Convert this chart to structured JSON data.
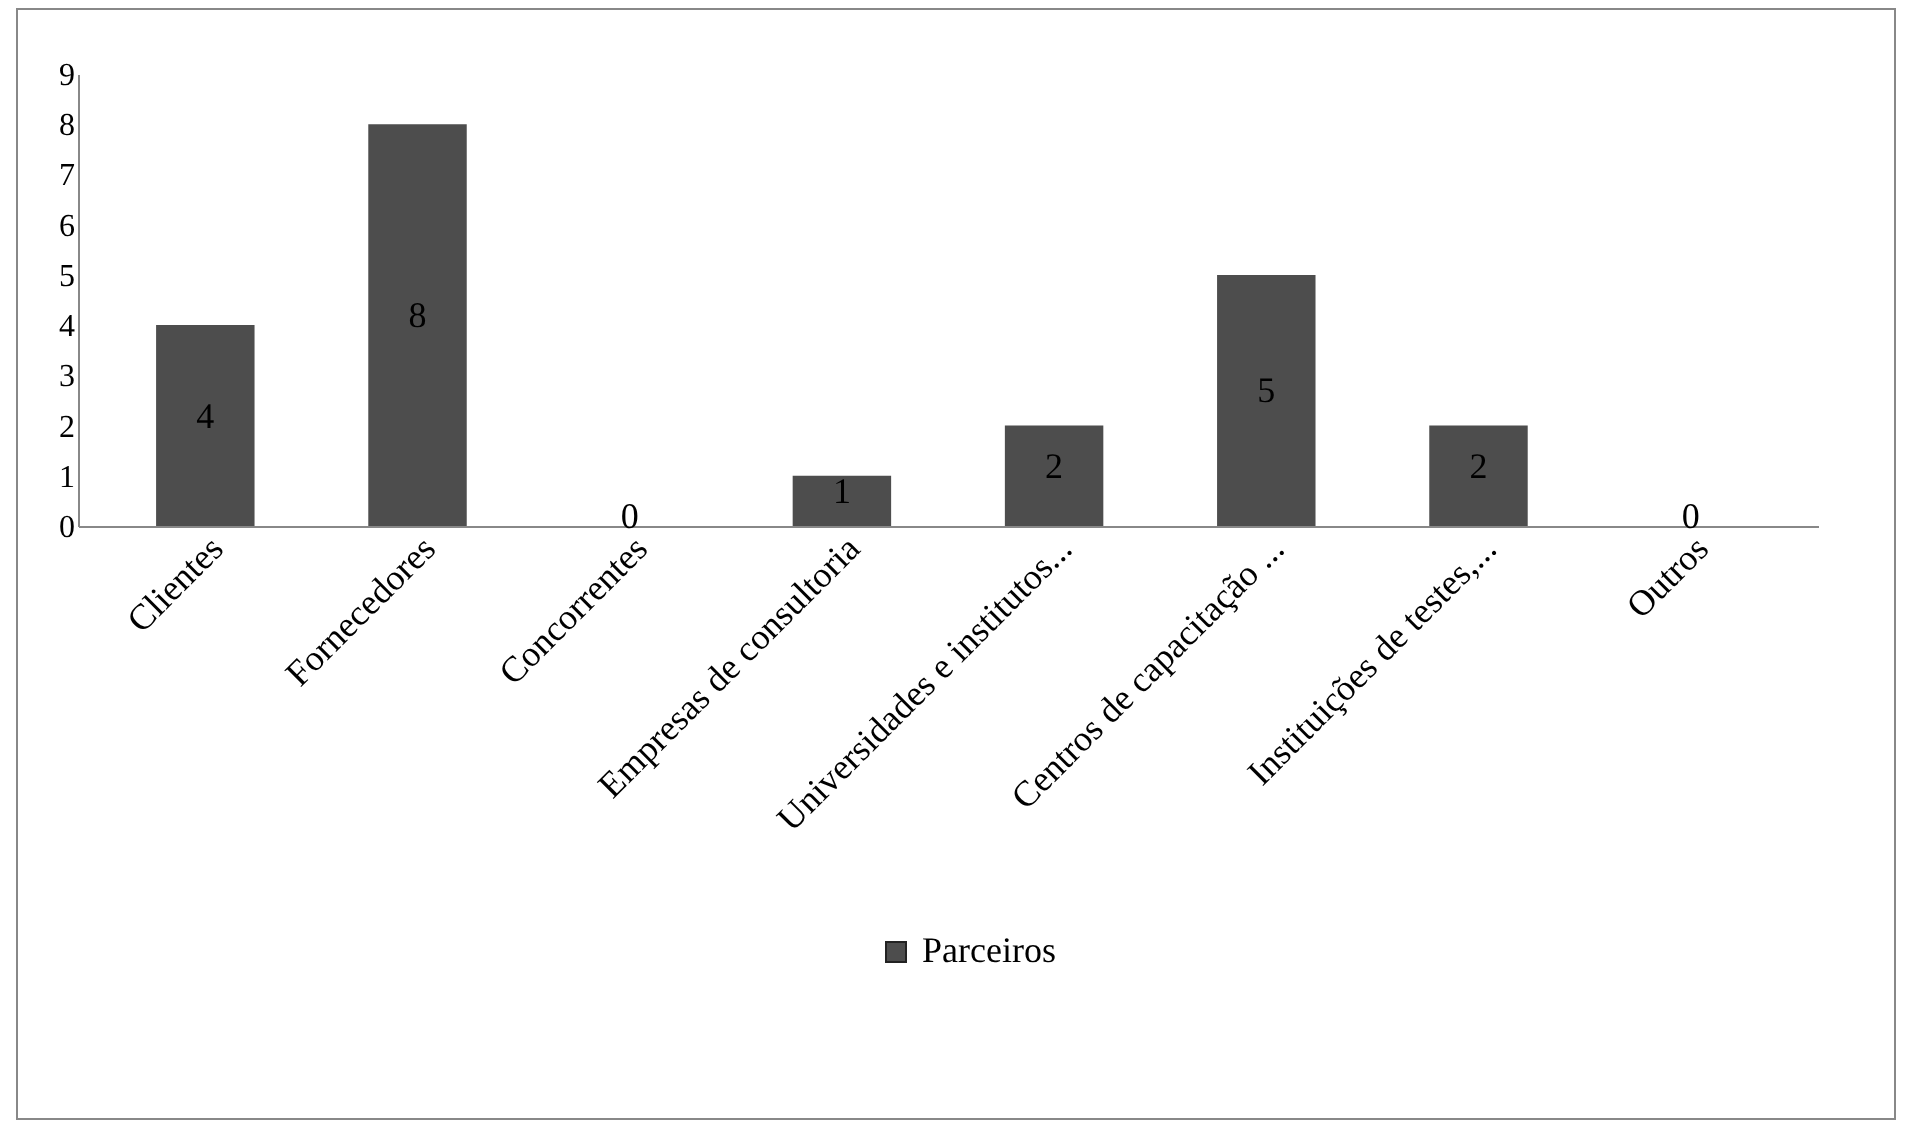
{
  "chart_data": {
    "type": "bar",
    "categories": [
      "Clientes",
      "Fornecedores",
      "Concorrentes",
      "Empresas de consultoria",
      "Universidades e institutos...",
      "Centros de capacitação ...",
      "Instituições de testes,...",
      "Outros"
    ],
    "series": [
      {
        "name": "Parceiros",
        "color": "#4d4d4d",
        "values": [
          4,
          8,
          0,
          1,
          2,
          5,
          2,
          0
        ]
      }
    ],
    "ylim": [
      0,
      9
    ],
    "yticks": [
      0,
      1,
      2,
      3,
      4,
      5,
      6,
      7,
      8,
      9
    ],
    "data_labels": true,
    "legend": "bottom",
    "grid": false
  }
}
